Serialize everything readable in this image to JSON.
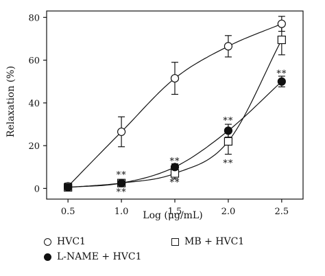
{
  "chart_data": {
    "type": "scatter",
    "xlabel": "Log (μg/mL)",
    "ylabel": "Relaxation (%)",
    "xlim": [
      0.3,
      2.7
    ],
    "ylim": [
      -5,
      83
    ],
    "xticks": [
      "0.5",
      "1.0",
      "1.5",
      "2.0",
      "2.5"
    ],
    "yticks": [
      "0",
      "20",
      "40",
      "60",
      "80"
    ],
    "grid": false,
    "legend_position": "bottom",
    "series": [
      {
        "name": "HVC1",
        "marker": "circle-open",
        "x": [
          0.5,
          1.0,
          1.5,
          2.0,
          2.5
        ],
        "y": [
          1,
          26.5,
          51.5,
          66.5,
          77
        ],
        "error": [
          1.5,
          7,
          7.5,
          5,
          3.5
        ]
      },
      {
        "name": "L-NAME + HVC1",
        "marker": "circle-filled",
        "x": [
          0.5,
          1.0,
          1.5,
          2.0,
          2.5
        ],
        "y": [
          0.5,
          2.5,
          10,
          27,
          50
        ],
        "error": [
          0.5,
          0.8,
          1.5,
          3,
          2.5
        ]
      },
      {
        "name": "MB + HVC1",
        "marker": "square-open",
        "x": [
          0.5,
          1.0,
          1.5,
          2.0,
          2.5
        ],
        "y": [
          0.5,
          2.5,
          7,
          22,
          69.5
        ],
        "error": [
          0.5,
          0.8,
          2.5,
          6,
          7
        ]
      }
    ],
    "annotations": [
      {
        "text": "**",
        "x": 1.0,
        "y": 6.5
      },
      {
        "text": "**",
        "x": 1.0,
        "y": -1.5
      },
      {
        "text": "**",
        "x": 1.5,
        "y": 13
      },
      {
        "text": "**",
        "x": 1.5,
        "y": 3
      },
      {
        "text": "**",
        "x": 2.0,
        "y": 32
      },
      {
        "text": "**",
        "x": 2.0,
        "y": 12
      },
      {
        "text": "**",
        "x": 2.5,
        "y": 54
      }
    ]
  }
}
